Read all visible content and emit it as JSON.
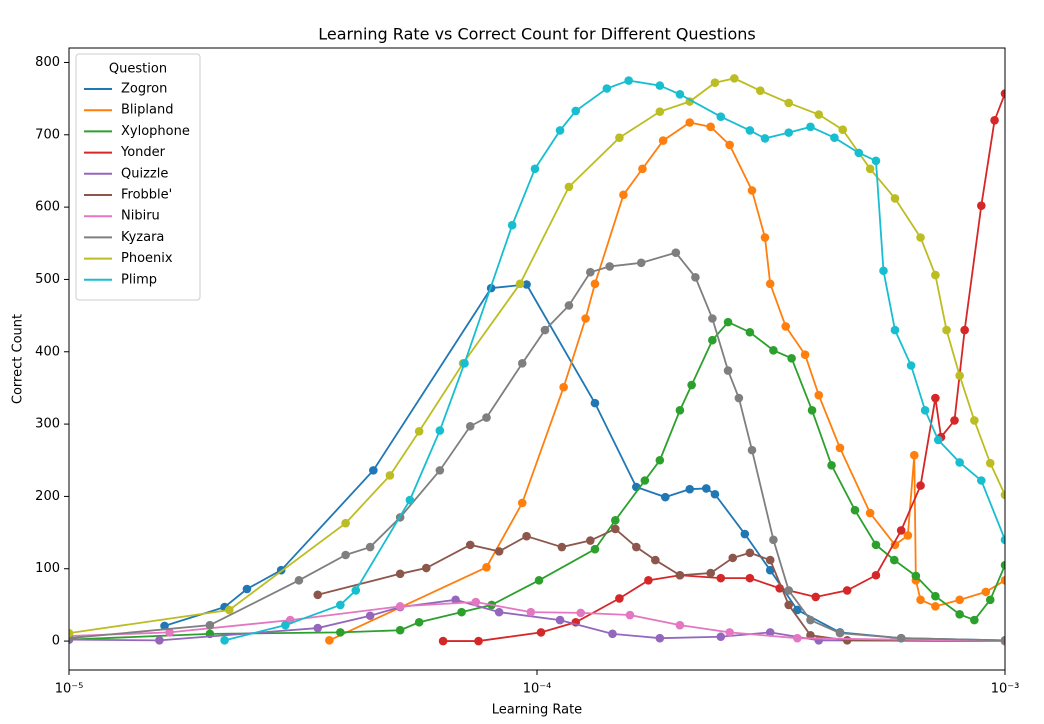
{
  "chart_data": {
    "type": "line",
    "title": "Learning Rate vs Correct Count for Different Questions",
    "x_label": "Learning Rate",
    "y_label": "Correct Count",
    "xscale": "log",
    "xlim": [
      1e-05,
      0.001
    ],
    "ylim": [
      -40,
      820
    ],
    "xticks": [
      {
        "value": 1e-05,
        "label": "10⁻⁵"
      },
      {
        "value": 0.0001,
        "label": "10⁻⁴"
      },
      {
        "value": 0.001,
        "label": "10⁻³"
      }
    ],
    "yticks": [
      0,
      100,
      200,
      300,
      400,
      500,
      600,
      700,
      800
    ],
    "grid": false,
    "legend": "upper left",
    "legend_title": "Question",
    "markers": true,
    "series": [
      {
        "name": "Zogron",
        "color": "#1f77b4",
        "x": [
          1.6e-05,
          2.15e-05,
          2.4e-05,
          2.84e-05,
          4.47e-05,
          7.98e-05,
          9.5e-05,
          0.000133,
          0.000163,
          0.000188,
          0.000212,
          0.00023,
          0.00024,
          0.000278,
          0.000315,
          0.00036,
          0.000444,
          0.0006,
          0.001
        ],
        "values": [
          21,
          47,
          72,
          98,
          236,
          488,
          493,
          329,
          213,
          199,
          210,
          211,
          203,
          148,
          98,
          43,
          12,
          4,
          1
        ]
      },
      {
        "name": "Blipland",
        "color": "#ff7f0e",
        "x": [
          3.6e-05,
          7.8e-05,
          9.3e-05,
          0.000114,
          0.000127,
          0.000133,
          0.000153,
          0.000168,
          0.000186,
          0.000212,
          0.000235,
          0.000258,
          0.000288,
          0.000307,
          0.000315,
          0.00034,
          0.000374,
          0.0004,
          0.000444,
          0.000515,
          0.000582,
          0.00062,
          0.00064,
          0.000645,
          0.00066,
          0.00071,
          0.0008,
          0.00091,
          0.001
        ],
        "values": [
          1,
          102,
          191,
          351,
          446,
          494,
          617,
          653,
          692,
          717,
          711,
          686,
          623,
          558,
          494,
          435,
          396,
          340,
          267,
          177,
          133,
          146,
          257,
          84,
          57,
          48,
          57,
          68,
          84
        ]
      },
      {
        "name": "Xylophone",
        "color": "#2ca02c",
        "x": [
          1e-05,
          2e-05,
          3.8e-05,
          5.1e-05,
          5.6e-05,
          6.9e-05,
          8e-05,
          0.000101,
          0.000133,
          0.000147,
          0.00017,
          0.000183,
          0.000202,
          0.000214,
          0.000237,
          0.000256,
          0.000285,
          0.00032,
          0.00035,
          0.000387,
          0.000426,
          0.000478,
          0.00053,
          0.00058,
          0.000645,
          0.00071,
          0.0008,
          0.00086,
          0.00093,
          0.001
        ],
        "values": [
          2,
          10,
          12,
          15,
          26,
          40,
          50,
          84,
          127,
          167,
          222,
          250,
          319,
          354,
          416,
          441,
          427,
          402,
          391,
          319,
          243,
          181,
          133,
          112,
          90,
          62,
          37,
          29,
          57,
          105
        ]
      },
      {
        "name": "Yonder",
        "color": "#d62728",
        "x": [
          6.3e-05,
          7.5e-05,
          0.000102,
          0.000121,
          0.00015,
          0.000173,
          0.000202,
          0.000247,
          0.000285,
          0.00033,
          0.000394,
          0.00046,
          0.00053,
          0.0006,
          0.00066,
          0.00071,
          0.00073,
          0.00078,
          0.00082,
          0.00089,
          0.00095,
          0.001
        ],
        "values": [
          0,
          0,
          12,
          26,
          59,
          84,
          91,
          87,
          87,
          73,
          61,
          70,
          91,
          153,
          215,
          336,
          282,
          305,
          430,
          602,
          720,
          757
        ]
      },
      {
        "name": "Quizzle",
        "color": "#9467bd",
        "x": [
          1e-05,
          1.56e-05,
          3.4e-05,
          4.4e-05,
          5.1e-05,
          6.7e-05,
          8.3e-05,
          0.000112,
          0.000145,
          0.000183,
          0.000247,
          0.000315,
          0.0004,
          0.001
        ],
        "values": [
          2,
          1,
          18,
          35,
          47,
          57,
          40,
          29,
          10,
          4,
          6,
          12,
          1,
          0
        ]
      },
      {
        "name": "Frobble'",
        "color": "#8c564b",
        "x": [
          3.4e-05,
          5.1e-05,
          5.8e-05,
          7.2e-05,
          8.3e-05,
          9.5e-05,
          0.000113,
          0.00013,
          0.000147,
          0.000163,
          0.000179,
          0.000202,
          0.000235,
          0.000262,
          0.000285,
          0.000315,
          0.000345,
          0.000384,
          0.00046,
          0.001
        ],
        "values": [
          64,
          93,
          101,
          133,
          124,
          145,
          130,
          139,
          155,
          130,
          112,
          91,
          94,
          115,
          122,
          112,
          50,
          8,
          1,
          0
        ]
      },
      {
        "name": "Nibiru",
        "color": "#e377c2",
        "x": [
          1e-05,
          1.64e-05,
          2.97e-05,
          5.1e-05,
          7.4e-05,
          9.7e-05,
          0.000124,
          0.000158,
          0.000202,
          0.000258,
          0.00036,
          0.001
        ],
        "values": [
          7,
          12,
          29,
          48,
          54,
          40,
          39,
          36,
          22,
          12,
          4,
          0
        ]
      },
      {
        "name": "Kyzara",
        "color": "#7f7f7f",
        "x": [
          1e-05,
          2e-05,
          3.1e-05,
          3.9e-05,
          4.4e-05,
          5.1e-05,
          6.2e-05,
          7.2e-05,
          7.8e-05,
          9.3e-05,
          0.000104,
          0.000117,
          0.00013,
          0.000143,
          0.000167,
          0.000198,
          0.000218,
          0.000237,
          0.000256,
          0.00027,
          0.000288,
          0.00032,
          0.000345,
          0.000384,
          0.000444,
          0.0006,
          0.001
        ],
        "values": [
          4,
          22,
          84,
          119,
          130,
          171,
          236,
          297,
          309,
          384,
          430,
          464,
          510,
          518,
          523,
          537,
          503,
          446,
          374,
          336,
          264,
          140,
          70,
          29,
          11,
          4,
          1
        ]
      },
      {
        "name": "Phoenix",
        "color": "#bcbd22",
        "x": [
          1e-05,
          2.2e-05,
          3.9e-05,
          4.85e-05,
          5.6e-05,
          6.95e-05,
          9.2e-05,
          0.000117,
          0.00015,
          0.000183,
          0.000212,
          0.00024,
          0.000264,
          0.0003,
          0.000345,
          0.0004,
          0.00045,
          0.000515,
          0.000582,
          0.00066,
          0.00071,
          0.00075,
          0.0008,
          0.00086,
          0.00093,
          0.001
        ],
        "values": [
          11,
          43,
          163,
          229,
          290,
          384,
          494,
          628,
          696,
          732,
          746,
          772,
          778,
          761,
          744,
          728,
          707,
          653,
          612,
          558,
          506,
          430,
          367,
          305,
          246,
          202
        ]
      },
      {
        "name": "Plimp",
        "color": "#17becf",
        "x": [
          2.15e-05,
          2.9e-05,
          3.8e-05,
          4.1e-05,
          5.35e-05,
          6.2e-05,
          7e-05,
          8.85e-05,
          9.9e-05,
          0.000112,
          0.000121,
          0.000141,
          0.000157,
          0.000183,
          0.000202,
          0.000247,
          0.000285,
          0.000307,
          0.000345,
          0.000384,
          0.000432,
          0.000487,
          0.00053,
          0.00055,
          0.000582,
          0.00063,
          0.000675,
          0.00072,
          0.0008,
          0.00089,
          0.001
        ],
        "values": [
          1,
          22,
          50,
          70,
          195,
          291,
          384,
          575,
          653,
          706,
          733,
          764,
          775,
          768,
          756,
          725,
          706,
          695,
          703,
          711,
          696,
          675,
          664,
          512,
          430,
          381,
          319,
          278,
          247,
          222,
          140
        ]
      }
    ]
  }
}
